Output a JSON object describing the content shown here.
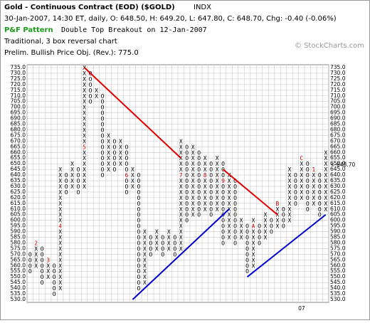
{
  "chart_data": {
    "type": "point-and-figure",
    "title": "Gold - Continuous Contract (EOD) ($GOLD)",
    "exchange": "INDX",
    "quote": "30-Jan-2007, 14:30 ET, daily, O: 648.50, H: 649.20, L: 647.80, C: 648.70, Chg: -0.40 (-0.06%)",
    "pattern_label": "P&F Pattern",
    "pattern": "Double Top Breakout on 12-Jan-2007",
    "method": "Traditional, 3 box reversal chart",
    "objective": "Prelim. Bullish Price Obj. (Rev.): 775.0",
    "credit": "© StockCharts.com",
    "ylim": [
      530,
      735
    ],
    "yticks": [
      {
        "value": 530,
        "label": "530.0"
      },
      {
        "value": 535,
        "label": "535.0"
      },
      {
        "value": 540,
        "label": "540.0"
      },
      {
        "value": 545,
        "label": "545.0"
      },
      {
        "value": 550,
        "label": "550.0"
      },
      {
        "value": 555,
        "label": "555.0"
      },
      {
        "value": 560,
        "label": "560.0"
      },
      {
        "value": 565,
        "label": "565.0"
      },
      {
        "value": 570,
        "label": "570.0"
      },
      {
        "value": 575,
        "label": "575.0"
      },
      {
        "value": 580,
        "label": "580.0"
      },
      {
        "value": 585,
        "label": "585.0"
      },
      {
        "value": 590,
        "label": "590.0"
      },
      {
        "value": 595,
        "label": "595.0"
      },
      {
        "value": 600,
        "label": "600.0"
      },
      {
        "value": 605,
        "label": "605.0"
      },
      {
        "value": 610,
        "label": "610.0"
      },
      {
        "value": 615,
        "label": "615.0"
      },
      {
        "value": 620,
        "label": "620.0"
      },
      {
        "value": 625,
        "label": "625.0"
      },
      {
        "value": 630,
        "label": "630.0"
      },
      {
        "value": 635,
        "label": "635.0"
      },
      {
        "value": 640,
        "label": "640.0"
      },
      {
        "value": 645,
        "label": "645.0"
      },
      {
        "value": 650,
        "label": "650.0"
      },
      {
        "value": 655,
        "label": "655.0"
      },
      {
        "value": 660,
        "label": "660.0"
      },
      {
        "value": 665,
        "label": "665.0"
      },
      {
        "value": 670,
        "label": "670.0"
      },
      {
        "value": 675,
        "label": "675.0"
      },
      {
        "value": 680,
        "label": "680.0"
      },
      {
        "value": 685,
        "label": "685.0"
      },
      {
        "value": 690,
        "label": "690.0"
      },
      {
        "value": 695,
        "label": "695.0"
      },
      {
        "value": 700,
        "label": "700.0"
      },
      {
        "value": 705,
        "label": "705.0"
      },
      {
        "value": 710,
        "label": "710.0"
      },
      {
        "value": 715,
        "label": "715.0"
      },
      {
        "value": 720,
        "label": "720.0"
      },
      {
        "value": 725,
        "label": "725.0"
      },
      {
        "value": 730,
        "label": "730.0"
      },
      {
        "value": 735,
        "label": "735.0"
      }
    ],
    "box_size": 5,
    "columns": [
      {
        "box": "O",
        "start": 570,
        "end": 555
      },
      {
        "box": "X",
        "start": 560,
        "end": 580,
        "month": "2",
        "month_price": 580
      },
      {
        "box": "O",
        "start": 575,
        "end": 545
      },
      {
        "box": "X",
        "start": 550,
        "end": 565,
        "month": "3",
        "month_price": 565
      },
      {
        "box": "O",
        "start": 560,
        "end": 535
      },
      {
        "box": "X",
        "start": 540,
        "end": 645,
        "month": "4",
        "month_price": 595
      },
      {
        "box": "O",
        "start": 640,
        "end": 625
      },
      {
        "box": "X",
        "start": 630,
        "end": 650
      },
      {
        "box": "O",
        "start": 645,
        "end": 625
      },
      {
        "box": "X",
        "start": 630,
        "end": 735,
        "month": "5",
        "month_price": 665
      },
      {
        "box": "O",
        "start": 730,
        "end": 705
      },
      {
        "box": "X",
        "start": 710,
        "end": 715
      },
      {
        "box": "O",
        "start": 710,
        "end": 640
      },
      {
        "box": "X",
        "start": 645,
        "end": 675
      },
      {
        "box": "O",
        "start": 670,
        "end": 645
      },
      {
        "box": "X",
        "start": 650,
        "end": 670
      },
      {
        "box": "O",
        "start": 665,
        "end": 625,
        "month": "6",
        "month_price": 640
      },
      {
        "box": "X",
        "start": 630,
        "end": 645
      },
      {
        "box": "O",
        "start": 640,
        "end": 540
      },
      {
        "box": "X",
        "start": 545,
        "end": 590
      },
      {
        "box": "O",
        "start": 585,
        "end": 570
      },
      {
        "box": "X",
        "start": 575,
        "end": 590
      },
      {
        "box": "O",
        "start": 585,
        "end": 570
      },
      {
        "box": "X",
        "start": 575,
        "end": 590
      },
      {
        "box": "O",
        "start": 585,
        "end": 570
      },
      {
        "box": "X",
        "start": 575,
        "end": 670,
        "month": "7",
        "month_price": 640
      },
      {
        "box": "O",
        "start": 665,
        "end": 600
      },
      {
        "box": "X",
        "start": 605,
        "end": 665
      },
      {
        "box": "O",
        "start": 660,
        "end": 605
      },
      {
        "box": "X",
        "start": 610,
        "end": 655,
        "month": "8",
        "month_price": 640
      },
      {
        "box": "O",
        "start": 650,
        "end": 605
      },
      {
        "box": "X",
        "start": 610,
        "end": 655
      },
      {
        "box": "O",
        "start": 650,
        "end": 580,
        "month": "9",
        "month_price": 635
      },
      {
        "box": "X",
        "start": 585,
        "end": 640
      },
      {
        "box": "O",
        "start": 635,
        "end": 580
      },
      {
        "box": "X",
        "start": 585,
        "end": 600
      },
      {
        "box": "O",
        "start": 595,
        "end": 555
      },
      {
        "box": "X",
        "start": 560,
        "end": 600,
        "month": "A",
        "month_price": 595
      },
      {
        "box": "O",
        "start": 595,
        "end": 580
      },
      {
        "box": "X",
        "start": 585,
        "end": 605
      },
      {
        "box": "O",
        "start": 600,
        "end": 590
      },
      {
        "box": "X",
        "start": 595,
        "end": 615,
        "month": "B",
        "month_price": 615
      },
      {
        "box": "O",
        "start": 610,
        "end": 595
      },
      {
        "box": "X",
        "start": 600,
        "end": 645
      },
      {
        "box": "O",
        "start": 640,
        "end": 615
      },
      {
        "box": "X",
        "start": 620,
        "end": 655,
        "month": "C",
        "month_price": 655
      },
      {
        "box": "O",
        "start": 650,
        "end": 610
      },
      {
        "box": "X",
        "start": 615,
        "end": 645,
        "month": "1",
        "month_price": 645
      },
      {
        "box": "O",
        "start": 640,
        "end": 605
      },
      {
        "box": "X",
        "start": 610,
        "end": 660
      }
    ],
    "trend_lines": [
      {
        "color": "#e00000",
        "from_column": 9,
        "from_price": 735,
        "to_column": 25,
        "to_price": 655
      },
      {
        "color": "#e00000",
        "from_column": 32,
        "from_price": 645,
        "to_column": 41,
        "to_price": 605
      },
      {
        "color": "#0000d0",
        "from_column": 17,
        "from_price": 530,
        "to_column": 33,
        "to_price": 610
      },
      {
        "color": "#0000d0",
        "from_column": 36,
        "from_price": 550,
        "to_column": 49,
        "to_price": 605
      }
    ],
    "last_price": {
      "value": 648.7,
      "label": "<-648.70"
    },
    "x_labels": [
      {
        "column": 45,
        "label": "07"
      }
    ],
    "grid": true
  }
}
